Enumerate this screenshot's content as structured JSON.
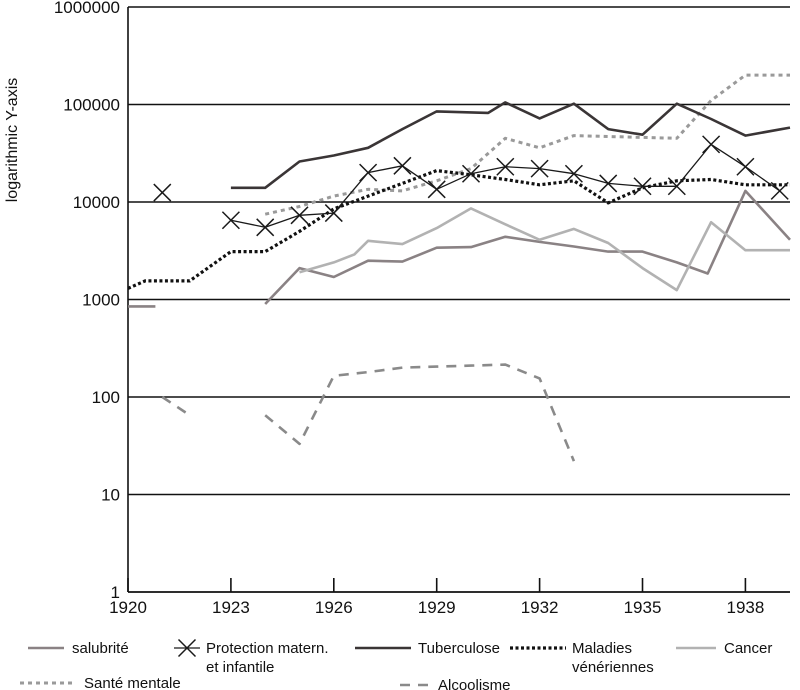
{
  "chart_data": {
    "type": "line",
    "ylabel": "logarithmic Y-axis",
    "yscale": "log",
    "ylim": [
      1,
      1000000
    ],
    "xlim": [
      1920,
      1939.3
    ],
    "y_ticks": [
      1,
      10,
      100,
      1000,
      10000,
      100000,
      1000000
    ],
    "y_tick_labels": [
      "1",
      "10",
      "100",
      "1000",
      "10000",
      "100000",
      "1000000"
    ],
    "x_ticks": [
      1920,
      1923,
      1926,
      1929,
      1932,
      1935,
      1938
    ],
    "x_tick_labels": [
      "1920",
      "1923",
      "1926",
      "1929",
      "1932",
      "1935",
      "1938"
    ],
    "grid": "horizontal",
    "legend_position": "bottom",
    "series": [
      {
        "name": "salubrité",
        "color": "#8a8284",
        "dash": "solid",
        "segments": [
          [
            [
              1920,
              850
            ],
            [
              1920.8,
              850
            ]
          ],
          [
            [
              1924.0,
              900
            ],
            [
              1925.0,
              2100
            ],
            [
              1926.0,
              1700
            ],
            [
              1927.0,
              2500
            ],
            [
              1928.0,
              2450
            ],
            [
              1929.0,
              3400
            ],
            [
              1930.0,
              3450
            ],
            [
              1931.0,
              4400
            ],
            [
              1932.0,
              3900
            ],
            [
              1933.0,
              3500
            ],
            [
              1934.0,
              3100
            ],
            [
              1935.0,
              3100
            ],
            [
              1936.0,
              2400
            ],
            [
              1936.9,
              1850
            ],
            [
              1938.0,
              13000
            ],
            [
              1939.3,
              4100
            ]
          ]
        ]
      },
      {
        "name": "Protection matern. et infantile",
        "color": "#1a1a1a",
        "dash": "solid",
        "marker": "x",
        "segments": [
          [
            [
              1921.0,
              12500
            ]
          ],
          [
            [
              1923.0,
              6500
            ],
            [
              1924.0,
              5500
            ],
            [
              1925.0,
              7300
            ],
            [
              1926.0,
              7700
            ],
            [
              1927.0,
              20000
            ],
            [
              1928.0,
              23500
            ],
            [
              1929.0,
              13500
            ],
            [
              1930.0,
              19500
            ],
            [
              1931.0,
              23000
            ],
            [
              1932.0,
              22000
            ],
            [
              1933.0,
              19500
            ],
            [
              1934.0,
              15500
            ],
            [
              1935.0,
              14500
            ],
            [
              1936.0,
              14500
            ],
            [
              1937.0,
              39000
            ],
            [
              1938.0,
              23000
            ],
            [
              1939.0,
              13000
            ]
          ]
        ]
      },
      {
        "name": "Tuberculose",
        "color": "#3a3536",
        "dash": "solid",
        "segments": [
          [
            [
              1923.0,
              14000
            ],
            [
              1924.0,
              14000
            ],
            [
              1925.0,
              26000
            ],
            [
              1926.0,
              30000
            ],
            [
              1927.0,
              36000
            ],
            [
              1928.0,
              56000
            ],
            [
              1929.0,
              85000
            ],
            [
              1930.0,
              83000
            ],
            [
              1930.5,
              82000
            ],
            [
              1931.0,
              105000
            ],
            [
              1932.0,
              72000
            ],
            [
              1933.0,
              102000
            ],
            [
              1934.0,
              56000
            ],
            [
              1935.0,
              49000
            ],
            [
              1936.0,
              102000
            ],
            [
              1937.0,
              71000
            ],
            [
              1938.0,
              48000
            ],
            [
              1939.3,
              58000
            ]
          ]
        ]
      },
      {
        "name": "Maladies vénériennes",
        "color": "#111111",
        "dash": "dotted",
        "segments": [
          [
            [
              1920.0,
              1300
            ],
            [
              1920.5,
              1550
            ],
            [
              1921.8,
              1550
            ],
            [
              1923.0,
              3100
            ],
            [
              1924.0,
              3100
            ],
            [
              1925.0,
              5000
            ],
            [
              1926.0,
              8500
            ],
            [
              1927.0,
              11500
            ],
            [
              1928.0,
              15500
            ],
            [
              1929.0,
              21000
            ],
            [
              1930.0,
              19000
            ],
            [
              1931.0,
              17000
            ],
            [
              1932.0,
              15000
            ],
            [
              1933.0,
              16500
            ],
            [
              1934.0,
              9800
            ],
            [
              1935.0,
              14000
            ],
            [
              1936.0,
              16500
            ],
            [
              1937.0,
              17000
            ],
            [
              1938.0,
              15000
            ],
            [
              1939.3,
              15000
            ]
          ]
        ]
      },
      {
        "name": "Cancer",
        "color": "#b2b2b2",
        "dash": "solid",
        "segments": [
          [
            [
              1925.0,
              1900
            ],
            [
              1926.0,
              2400
            ],
            [
              1926.6,
              2900
            ],
            [
              1927.0,
              4000
            ],
            [
              1928.0,
              3700
            ],
            [
              1929.0,
              5400
            ],
            [
              1930.0,
              8600
            ],
            [
              1931.0,
              5900
            ],
            [
              1932.0,
              4100
            ],
            [
              1933.0,
              5300
            ],
            [
              1934.0,
              3800
            ],
            [
              1935.0,
              2100
            ],
            [
              1936.0,
              1250
            ],
            [
              1937.0,
              6200
            ],
            [
              1938.0,
              3200
            ],
            [
              1939.3,
              3200
            ]
          ]
        ]
      },
      {
        "name": "Santé mentale",
        "color": "#9a9a9a",
        "dash": "dashed-fine",
        "segments": [
          [
            [
              1924.0,
              7500
            ],
            [
              1925.0,
              9000
            ],
            [
              1926.0,
              11500
            ],
            [
              1927.0,
              13500
            ],
            [
              1928.0,
              13000
            ],
            [
              1929.0,
              16500
            ],
            [
              1930.0,
              22000
            ],
            [
              1931.0,
              45000
            ],
            [
              1932.0,
              36000
            ],
            [
              1933.0,
              48000
            ],
            [
              1934.0,
              47000
            ],
            [
              1935.0,
              46000
            ],
            [
              1936.0,
              45000
            ],
            [
              1937.0,
              110000
            ],
            [
              1938.0,
              200000
            ],
            [
              1939.3,
              200000
            ]
          ]
        ]
      },
      {
        "name": "Alcoolisme",
        "color": "#8a8a8a",
        "dash": "dashed-coarse",
        "segments": [
          [
            [
              1921.0,
              100
            ],
            [
              1921.8,
              65
            ]
          ],
          [
            [
              1924.0,
              65
            ],
            [
              1925.0,
              33
            ],
            [
              1926.0,
              165
            ],
            [
              1927.0,
              180
            ],
            [
              1928.0,
              200
            ],
            [
              1929.0,
              205
            ],
            [
              1930.0,
              210
            ],
            [
              1931.0,
              215
            ],
            [
              1932.0,
              155
            ],
            [
              1933.0,
              22
            ]
          ]
        ]
      }
    ],
    "legend": [
      {
        "label": "salubrité",
        "series": 0
      },
      {
        "label": "Protection matern.",
        "label2": "et infantile",
        "series": 1
      },
      {
        "label": "Tuberculose",
        "series": 2
      },
      {
        "label": "Maladies",
        "label2": "vénériennes",
        "series": 3
      },
      {
        "label": "Cancer",
        "series": 4
      },
      {
        "label": "Santé mentale",
        "series": 5
      },
      {
        "label": "Alcoolisme",
        "series": 6
      }
    ]
  }
}
